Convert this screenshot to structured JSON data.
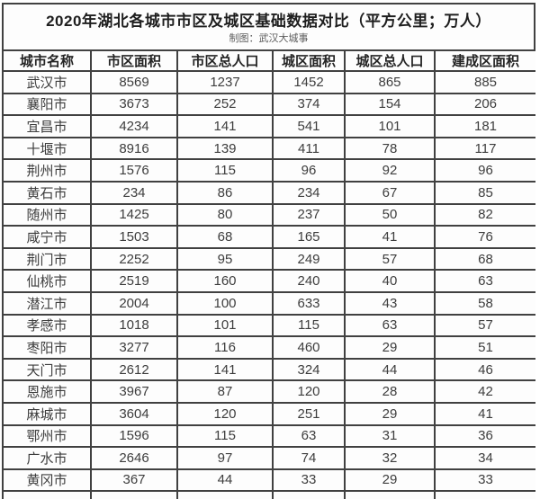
{
  "chart_data": {
    "type": "table",
    "title": "2020年湖北各城市市区及城区基础数据对比（平方公里；万人）",
    "credit": "制图：武汉大城事",
    "columns": [
      "城市名称",
      "市区面积",
      "市区总人口",
      "城区面积",
      "城区总人口",
      "建成区面积"
    ],
    "rows": [
      [
        "武汉市",
        8569,
        1237,
        1452,
        865,
        885
      ],
      [
        "襄阳市",
        3673,
        252,
        374,
        154,
        206
      ],
      [
        "宜昌市",
        4234,
        141,
        541,
        101,
        181
      ],
      [
        "十堰市",
        8916,
        139,
        411,
        78,
        117
      ],
      [
        "荆州市",
        1576,
        115,
        96,
        92,
        96
      ],
      [
        "黄石市",
        234,
        86,
        234,
        67,
        85
      ],
      [
        "随州市",
        1425,
        80,
        237,
        50,
        82
      ],
      [
        "咸宁市",
        1503,
        68,
        165,
        41,
        76
      ],
      [
        "荆门市",
        2252,
        95,
        249,
        57,
        68
      ],
      [
        "仙桃市",
        2519,
        160,
        240,
        40,
        63
      ],
      [
        "潜江市",
        2004,
        100,
        633,
        43,
        58
      ],
      [
        "孝感市",
        1018,
        101,
        115,
        63,
        57
      ],
      [
        "枣阳市",
        3277,
        116,
        460,
        29,
        51
      ],
      [
        "天门市",
        2612,
        141,
        324,
        44,
        46
      ],
      [
        "恩施市",
        3967,
        87,
        120,
        28,
        42
      ],
      [
        "麻城市",
        3604,
        120,
        251,
        29,
        41
      ],
      [
        "鄂州市",
        1596,
        115,
        63,
        31,
        36
      ],
      [
        "广水市",
        2646,
        97,
        74,
        32,
        34
      ],
      [
        "黄冈市",
        367,
        44,
        33,
        29,
        33
      ]
    ]
  },
  "colors": {
    "border": "#414141",
    "title_text": "#1e1e1e",
    "subtitle_text": "#5c5c5c",
    "header_text": "#242424",
    "cell_text": "#3d3d3d",
    "background": "#fdfdfd"
  }
}
